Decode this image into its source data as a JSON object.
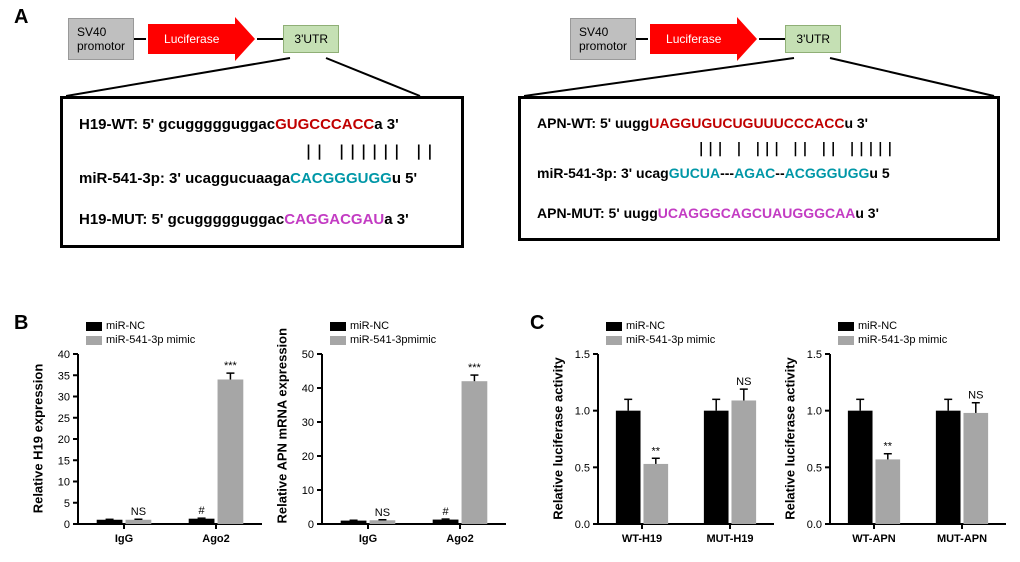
{
  "labels": {
    "A": "A",
    "B": "B",
    "C": "C"
  },
  "panelA": {
    "left": {
      "promoter": "SV40\npromotor",
      "luciferase": "Luciferase",
      "utr": "3'UTR",
      "seq": {
        "wt_label": "H19-WT: 5'",
        "wt_pre": "gcuggggguggac",
        "wt_match": "GUGCCCACC",
        "wt_post": "a 3'",
        "mir_label": "miR-541-3p: 3'",
        "mir_pre": " ucaggucuaaga",
        "mir_match": "CACGGGUGG",
        "mir_post": "u 5'",
        "mut_label": "H19-MUT: 5'",
        "mut_pre": " gcuggggguggac",
        "mut_mut": "CAGGACGAU",
        "mut_post": "a 3'",
        "bars": "||  ||||||  ||"
      }
    },
    "right": {
      "promoter": "SV40\npromotor",
      "luciferase": "Luciferase",
      "utr": "3'UTR",
      "seq": {
        "wt_label": "APN-WT: 5'",
        "wt_pre": " uugg",
        "wt_match": "UAGGUGUCUGUUUCCCACC",
        "wt_post": "u 3'",
        "mir_label": "miR-541-3p: 3'",
        "mir_pre": " ucag",
        "mir_match1": "GUCUA",
        "mir_gap1": "---",
        "mir_match2": "AGAC",
        "mir_gap2": "--",
        "mir_match3": "ACGGGUGG",
        "mir_post": "u 5",
        "mut_label": "APN-MUT: 5'",
        "mut_pre": " uugg",
        "mut_mut": "UCAGGGCAGCUAUGGGCAA",
        "mut_post": "u 3'",
        "bars": "|||   |     ||| ||     || |||||"
      }
    }
  },
  "chartB1": {
    "type": "bar",
    "ylabel": "Relative H19 expression",
    "legend": [
      "miR-NC",
      "miR-541-3p mimic"
    ],
    "categories": [
      "IgG",
      "Ago2"
    ],
    "series": [
      {
        "name": "miR-NC",
        "color": "#000000",
        "values": [
          1.0,
          1.25
        ],
        "errors": [
          0.1,
          0.12
        ],
        "annot": [
          "",
          "#"
        ]
      },
      {
        "name": "miR-541-3p mimic",
        "color": "#a6a6a6",
        "values": [
          1.0,
          34
        ],
        "errors": [
          0.12,
          1.5
        ],
        "annot": [
          "NS",
          "***"
        ]
      }
    ],
    "ylim": [
      0,
      40
    ],
    "yticks": [
      0,
      5,
      10,
      15,
      20,
      25,
      30,
      35,
      40
    ],
    "colors": {
      "axis": "#000000",
      "grid": "none",
      "bg": "#ffffff"
    }
  },
  "chartB2": {
    "type": "bar",
    "ylabel": "Relative APN mRNA expression",
    "legend": [
      "miR-NC",
      "miR-541-3pmimic"
    ],
    "categories": [
      "IgG",
      "Ago2"
    ],
    "series": [
      {
        "name": "miR-NC",
        "color": "#000000",
        "values": [
          1.0,
          1.3
        ],
        "errors": [
          0.1,
          0.15
        ],
        "annot": [
          "",
          "#"
        ]
      },
      {
        "name": "miR-541-3pmimic",
        "color": "#a6a6a6",
        "values": [
          1.1,
          42
        ],
        "errors": [
          0.15,
          1.8
        ],
        "annot": [
          "NS",
          "***"
        ]
      }
    ],
    "ylim": [
      0,
      50
    ],
    "yticks": [
      0,
      10,
      20,
      30,
      40,
      50
    ],
    "colors": {
      "axis": "#000000",
      "grid": "none",
      "bg": "#ffffff"
    }
  },
  "chartC1": {
    "type": "bar",
    "ylabel": "Relative luciferase activity",
    "legend": [
      "miR-NC",
      "miR-541-3p mimic"
    ],
    "categories": [
      "WT-H19",
      "MUT-H19"
    ],
    "series": [
      {
        "name": "miR-NC",
        "color": "#000000",
        "values": [
          1.0,
          1.0
        ],
        "errors": [
          0.1,
          0.1
        ],
        "annot": [
          "",
          ""
        ]
      },
      {
        "name": "miR-541-3p mimic",
        "color": "#a6a6a6",
        "values": [
          0.53,
          1.09
        ],
        "errors": [
          0.05,
          0.1
        ],
        "annot": [
          "**",
          "NS"
        ]
      }
    ],
    "ylim": [
      0,
      1.5
    ],
    "yticks": [
      0.0,
      0.5,
      1.0,
      1.5
    ],
    "colors": {
      "axis": "#000000",
      "grid": "none",
      "bg": "#ffffff"
    }
  },
  "chartC2": {
    "type": "bar",
    "ylabel": "Relative luciferase activity",
    "legend": [
      "miR-NC",
      "miR-541-3p mimic"
    ],
    "categories": [
      "WT-APN",
      "MUT-APN"
    ],
    "series": [
      {
        "name": "miR-NC",
        "color": "#000000",
        "values": [
          1.0,
          1.0
        ],
        "errors": [
          0.1,
          0.1
        ],
        "annot": [
          "",
          ""
        ]
      },
      {
        "name": "miR-541-3p mimic",
        "color": "#a6a6a6",
        "values": [
          0.57,
          0.98
        ],
        "errors": [
          0.05,
          0.09
        ],
        "annot": [
          "**",
          "NS"
        ]
      }
    ],
    "ylim": [
      0,
      1.5
    ],
    "yticks": [
      0.0,
      0.5,
      1.0,
      1.5
    ],
    "colors": {
      "axis": "#000000",
      "grid": "none",
      "bg": "#ffffff"
    }
  },
  "style": {
    "bar_width": 0.35,
    "tick_fontsize": 11,
    "annot_fontsize": 11,
    "label_fontsize": 13
  }
}
